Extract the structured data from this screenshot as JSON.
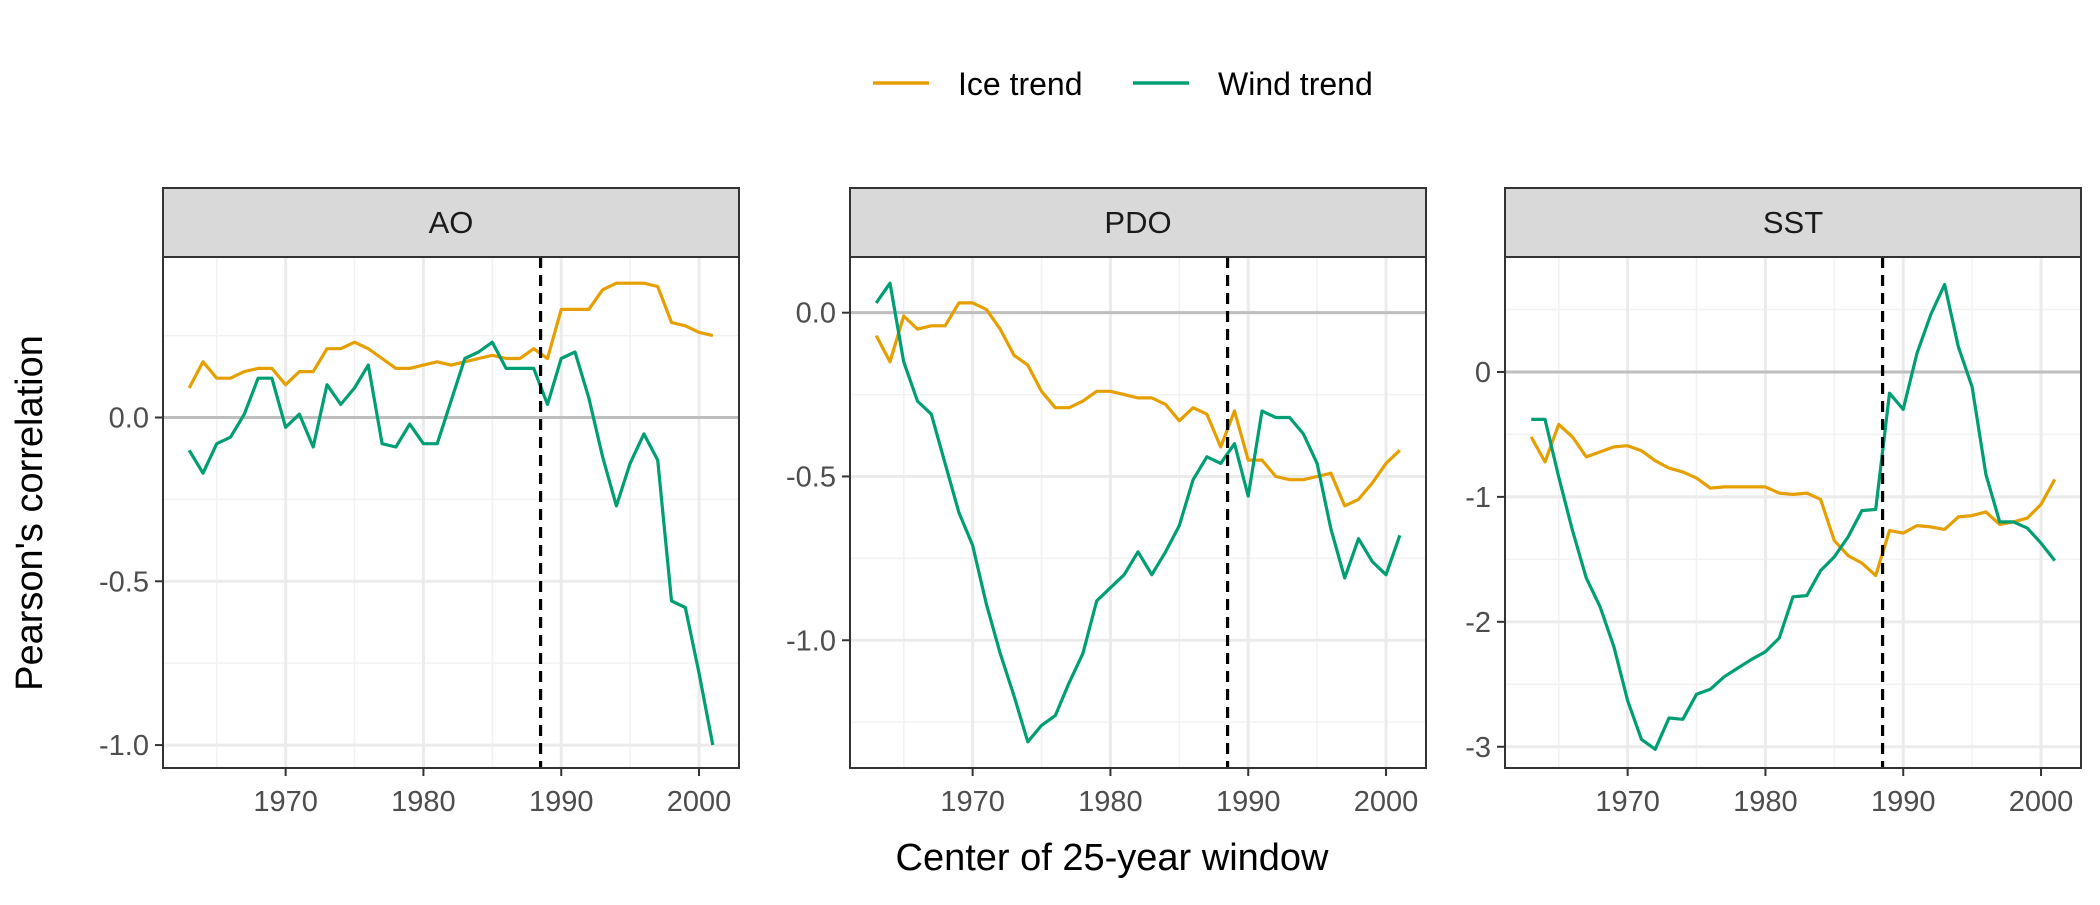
{
  "legend": {
    "items": [
      {
        "label": "Ice trend",
        "color": "#E69F00"
      },
      {
        "label": "Wind trend",
        "color": "#009E73"
      }
    ]
  },
  "axes": {
    "xlabel": "Center of 25-year window",
    "ylabel": "Pearson's correlation"
  },
  "chart_data": [
    {
      "type": "line",
      "title": "AO",
      "xlim": [
        1961.1,
        2002.9
      ],
      "ylim": [
        -1.07,
        0.49
      ],
      "x_ticks": [
        1970,
        1980,
        1990,
        2000
      ],
      "y_ticks": [
        0.0,
        -0.5,
        -1.0
      ],
      "y_tick_labels": [
        "0.0",
        "-0.5",
        "-1.0"
      ],
      "reference_line": 0,
      "vline": 1988.5,
      "grid": true,
      "x": [
        1963,
        1964,
        1965,
        1966,
        1967,
        1968,
        1969,
        1970,
        1971,
        1972,
        1973,
        1974,
        1975,
        1976,
        1977,
        1978,
        1979,
        1980,
        1981,
        1982,
        1983,
        1984,
        1985,
        1986,
        1987,
        1988,
        1989,
        1990,
        1991,
        1992,
        1993,
        1994,
        1995,
        1996,
        1997,
        1998,
        1999,
        2000,
        2001
      ],
      "series": [
        {
          "name": "Ice trend",
          "color": "#E69F00",
          "values": [
            0.09,
            0.17,
            0.12,
            0.12,
            0.14,
            0.15,
            0.15,
            0.1,
            0.14,
            0.14,
            0.21,
            0.21,
            0.23,
            0.21,
            0.18,
            0.15,
            0.15,
            0.16,
            0.17,
            0.16,
            0.17,
            0.18,
            0.19,
            0.18,
            0.18,
            0.21,
            0.18,
            0.33,
            0.33,
            0.33,
            0.39,
            0.41,
            0.41,
            0.41,
            0.4,
            0.29,
            0.28,
            0.26,
            0.25
          ]
        },
        {
          "name": "Wind trend",
          "color": "#009E73",
          "values": [
            -0.1,
            -0.17,
            -0.08,
            -0.06,
            0.01,
            0.12,
            0.12,
            -0.03,
            0.01,
            -0.09,
            0.1,
            0.04,
            0.09,
            0.16,
            -0.08,
            -0.09,
            -0.02,
            -0.08,
            -0.08,
            0.05,
            0.18,
            0.2,
            0.23,
            0.15,
            0.15,
            0.15,
            0.04,
            0.18,
            0.2,
            0.06,
            -0.12,
            -0.27,
            -0.14,
            -0.05,
            -0.13,
            -0.56,
            -0.58,
            -0.78,
            -1.0
          ]
        }
      ]
    },
    {
      "type": "line",
      "title": "PDO",
      "xlim": [
        1961.1,
        2002.9
      ],
      "ylim": [
        -1.39,
        0.17
      ],
      "x_ticks": [
        1970,
        1980,
        1990,
        2000
      ],
      "y_ticks": [
        0.0,
        -0.5,
        -1.0
      ],
      "y_tick_labels": [
        "0.0",
        "-0.5",
        "-1.0"
      ],
      "reference_line": 0,
      "vline": 1988.5,
      "grid": true,
      "x": [
        1963,
        1964,
        1965,
        1966,
        1967,
        1968,
        1969,
        1970,
        1971,
        1972,
        1973,
        1974,
        1975,
        1976,
        1977,
        1978,
        1979,
        1980,
        1981,
        1982,
        1983,
        1984,
        1985,
        1986,
        1987,
        1988,
        1989,
        1990,
        1991,
        1992,
        1993,
        1994,
        1995,
        1996,
        1997,
        1998,
        1999,
        2000,
        2001
      ],
      "series": [
        {
          "name": "Ice trend",
          "color": "#E69F00",
          "values": [
            -0.07,
            -0.15,
            -0.01,
            -0.05,
            -0.04,
            -0.04,
            0.03,
            0.03,
            0.01,
            -0.05,
            -0.13,
            -0.16,
            -0.24,
            -0.29,
            -0.29,
            -0.27,
            -0.24,
            -0.24,
            -0.25,
            -0.26,
            -0.26,
            -0.28,
            -0.33,
            -0.29,
            -0.31,
            -0.41,
            -0.3,
            -0.45,
            -0.45,
            -0.5,
            -0.51,
            -0.51,
            -0.5,
            -0.49,
            -0.59,
            -0.57,
            -0.52,
            -0.46,
            -0.42
          ]
        },
        {
          "name": "Wind trend",
          "color": "#009E73",
          "values": [
            0.03,
            0.09,
            -0.15,
            -0.27,
            -0.31,
            -0.46,
            -0.61,
            -0.71,
            -0.89,
            -1.04,
            -1.17,
            -1.31,
            -1.26,
            -1.23,
            -1.13,
            -1.04,
            -0.88,
            -0.84,
            -0.8,
            -0.73,
            -0.8,
            -0.73,
            -0.65,
            -0.51,
            -0.44,
            -0.46,
            -0.4,
            -0.56,
            -0.3,
            -0.32,
            -0.32,
            -0.37,
            -0.46,
            -0.66,
            -0.81,
            -0.69,
            -0.76,
            -0.8,
            -0.68
          ]
        }
      ]
    },
    {
      "type": "line",
      "title": "SST",
      "xlim": [
        1961.1,
        2002.9
      ],
      "ylim": [
        -3.17,
        0.92
      ],
      "x_ticks": [
        1970,
        1980,
        1990,
        2000
      ],
      "y_ticks": [
        0,
        -1,
        -2,
        -3
      ],
      "y_tick_labels": [
        "0",
        "-1",
        "-2",
        "-3"
      ],
      "reference_line": 0,
      "vline": 1988.5,
      "grid": true,
      "x": [
        1963,
        1964,
        1965,
        1966,
        1967,
        1968,
        1969,
        1970,
        1971,
        1972,
        1973,
        1974,
        1975,
        1976,
        1977,
        1978,
        1979,
        1980,
        1981,
        1982,
        1983,
        1984,
        1985,
        1986,
        1987,
        1988,
        1989,
        1990,
        1991,
        1992,
        1993,
        1994,
        1995,
        1996,
        1997,
        1998,
        1999,
        2000,
        2001
      ],
      "series": [
        {
          "name": "Ice trend",
          "color": "#E69F00",
          "values": [
            -0.52,
            -0.72,
            -0.42,
            -0.52,
            -0.68,
            -0.64,
            -0.6,
            -0.59,
            -0.63,
            -0.71,
            -0.77,
            -0.8,
            -0.85,
            -0.93,
            -0.92,
            -0.92,
            -0.92,
            -0.92,
            -0.97,
            -0.98,
            -0.97,
            -1.02,
            -1.35,
            -1.47,
            -1.53,
            -1.63,
            -1.27,
            -1.29,
            -1.23,
            -1.24,
            -1.26,
            -1.16,
            -1.15,
            -1.12,
            -1.22,
            -1.2,
            -1.17,
            -1.06,
            -0.86
          ]
        },
        {
          "name": "Wind trend",
          "color": "#009E73",
          "values": [
            -0.38,
            -0.38,
            -0.84,
            -1.27,
            -1.65,
            -1.88,
            -2.2,
            -2.63,
            -2.94,
            -3.02,
            -2.77,
            -2.78,
            -2.58,
            -2.54,
            -2.44,
            -2.37,
            -2.3,
            -2.24,
            -2.13,
            -1.8,
            -1.79,
            -1.59,
            -1.48,
            -1.32,
            -1.11,
            -1.1,
            -0.17,
            -0.3,
            0.15,
            0.46,
            0.7,
            0.2,
            -0.12,
            -0.82,
            -1.2,
            -1.2,
            -1.25,
            -1.37,
            -1.51
          ]
        }
      ]
    }
  ]
}
